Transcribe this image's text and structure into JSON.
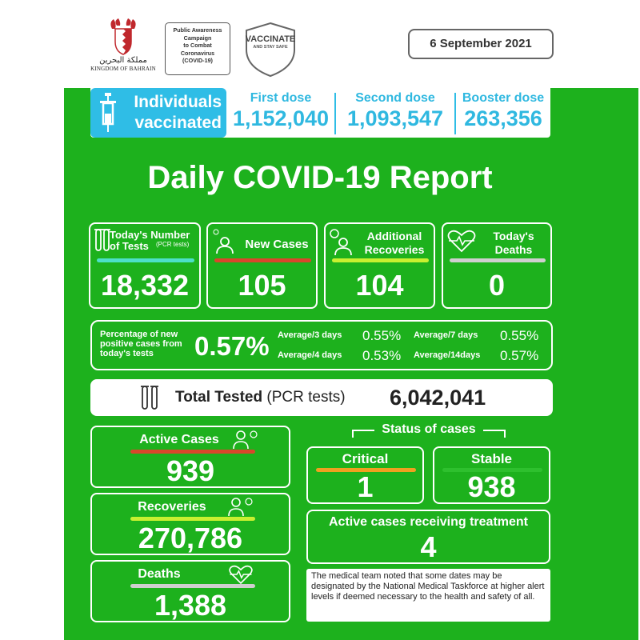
{
  "header": {
    "logo_arabic": "مملكة البحرين",
    "logo_english": "KINGDOM OF BAHRAIN",
    "campaign_text": "Public Awareness\nCampaign\nto Combat\nCoronavirus\n(COVID-19)",
    "vaccinate_title": "VACCINATE",
    "vaccinate_sub": "AND STAY SAFE",
    "date": "6 September 2021"
  },
  "vaccination": {
    "title": "Individuals vaccinated",
    "doses": [
      {
        "label": "First dose",
        "value": "1,152,040"
      },
      {
        "label": "Second dose",
        "value": "1,093,547"
      },
      {
        "label": "Booster dose",
        "value": "263,356"
      }
    ]
  },
  "report_title": "Daily COVID-19 Report",
  "daily": {
    "tests": {
      "label": "Today's Number of Tests",
      "sublabel": "(PCR tests)",
      "value": "18,332"
    },
    "new_cases": {
      "label": "New Cases",
      "value": "105"
    },
    "recoveries": {
      "label": "Additional Recoveries",
      "value": "104"
    },
    "deaths": {
      "label": "Today's Deaths",
      "value": "0"
    }
  },
  "positivity": {
    "label": "Percentage of new positive cases from today's tests",
    "value": "0.57%",
    "averages": [
      {
        "label": "Average/3 days",
        "value": "0.55%"
      },
      {
        "label": "Average/7 days",
        "value": "0.55%"
      },
      {
        "label": "Average/4 days",
        "value": "0.53%"
      },
      {
        "label": "Average/14days",
        "value": "0.57%"
      }
    ]
  },
  "total_tested": {
    "label_bold": "Total Tested",
    "label_rest": " (PCR tests)",
    "value": "6,042,041"
  },
  "cumulative": {
    "active": {
      "label": "Active Cases",
      "value": "939"
    },
    "recoveries": {
      "label": "Recoveries",
      "value": "270,786"
    },
    "deaths": {
      "label": "Deaths",
      "value": "1,388"
    }
  },
  "status": {
    "title": "Status of cases",
    "critical": {
      "label": "Critical",
      "value": "1"
    },
    "stable": {
      "label": "Stable",
      "value": "938"
    },
    "treatment": {
      "label": "Active cases receiving treatment",
      "value": "4"
    }
  },
  "note": "The medical team noted that some dates may be designated by the National Medical Taskforce at higher alert levels if deemed necessary to the health and safety of all.",
  "colors": {
    "green": "#1db11d",
    "cyan": "#2fbde6",
    "red_line": "#d9472b",
    "orange_line": "#f0a020",
    "lime_line": "#c8f030",
    "teal_line": "#4de0c8",
    "grey_line": "#cfcfcf"
  }
}
